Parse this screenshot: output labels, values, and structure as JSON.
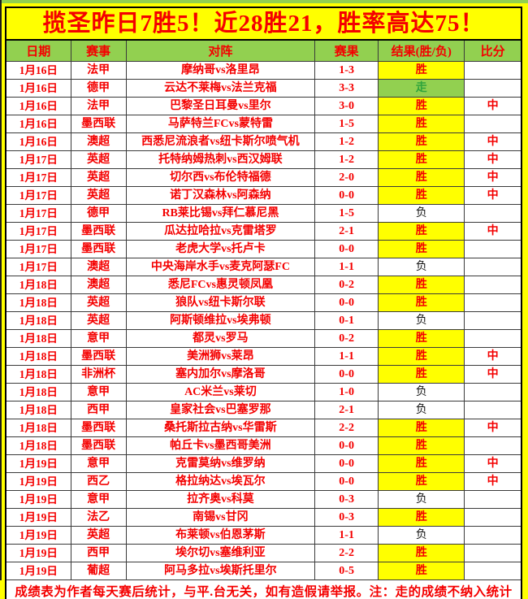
{
  "title": "揽圣昨日7胜5！近28胜21，胜率高达75！",
  "table": {
    "headers": [
      "日期",
      "赛事",
      "对阵",
      "赛果",
      "结果(胜/负)",
      "比分"
    ],
    "rows": [
      {
        "date": "1月16日",
        "league": "法甲",
        "match": "摩纳哥vs洛里昂",
        "score": "1-3",
        "result": "胜",
        "result_type": "win",
        "hit": ""
      },
      {
        "date": "1月16日",
        "league": "德甲",
        "match": "云达不莱梅vs法兰克福",
        "score": "3-3",
        "result": "走",
        "result_type": "draw",
        "hit": ""
      },
      {
        "date": "1月16日",
        "league": "法甲",
        "match": "巴黎圣日耳曼vs里尔",
        "score": "3-0",
        "result": "胜",
        "result_type": "win",
        "hit": "中"
      },
      {
        "date": "1月16日",
        "league": "墨西联",
        "match": "马萨特兰FCvs蒙特雷",
        "score": "1-5",
        "result": "胜",
        "result_type": "win",
        "hit": ""
      },
      {
        "date": "1月16日",
        "league": "澳超",
        "match": "西悉尼流浪者vs纽卡斯尔喷气机",
        "score": "1-2",
        "result": "胜",
        "result_type": "win",
        "hit": "中"
      },
      {
        "date": "1月17日",
        "league": "英超",
        "match": "托特纳姆热刺vs西汉姆联",
        "score": "1-2",
        "result": "胜",
        "result_type": "win",
        "hit": "中"
      },
      {
        "date": "1月17日",
        "league": "英超",
        "match": "切尔西vs布伦特福德",
        "score": "2-0",
        "result": "胜",
        "result_type": "win",
        "hit": "中"
      },
      {
        "date": "1月17日",
        "league": "英超",
        "match": "诺丁汉森林vs阿森纳",
        "score": "0-0",
        "result": "胜",
        "result_type": "win",
        "hit": "中"
      },
      {
        "date": "1月17日",
        "league": "德甲",
        "match": "RB莱比锡vs拜仁慕尼黑",
        "score": "1-5",
        "result": "负",
        "result_type": "loss",
        "hit": ""
      },
      {
        "date": "1月17日",
        "league": "墨西联",
        "match": "瓜达拉哈拉vs克雷塔罗",
        "score": "2-1",
        "result": "胜",
        "result_type": "win",
        "hit": "中"
      },
      {
        "date": "1月17日",
        "league": "墨西联",
        "match": "老虎大学vs托卢卡",
        "score": "0-0",
        "result": "胜",
        "result_type": "win",
        "hit": ""
      },
      {
        "date": "1月17日",
        "league": "澳超",
        "match": "中央海岸水手vs麦克阿瑟FC",
        "score": "1-1",
        "result": "负",
        "result_type": "loss",
        "hit": ""
      },
      {
        "date": "1月18日",
        "league": "澳超",
        "match": "悉尼FCvs惠灵顿凤凰",
        "score": "0-2",
        "result": "胜",
        "result_type": "win",
        "hit": ""
      },
      {
        "date": "1月18日",
        "league": "英超",
        "match": "狼队vs纽卡斯尔联",
        "score": "0-0",
        "result": "胜",
        "result_type": "win",
        "hit": ""
      },
      {
        "date": "1月18日",
        "league": "英超",
        "match": "阿斯顿维拉vs埃弗顿",
        "score": "0-1",
        "result": "负",
        "result_type": "loss",
        "hit": ""
      },
      {
        "date": "1月18日",
        "league": "意甲",
        "match": "都灵vs罗马",
        "score": "0-2",
        "result": "胜",
        "result_type": "win",
        "hit": ""
      },
      {
        "date": "1月18日",
        "league": "墨西联",
        "match": "美洲狮vs莱昂",
        "score": "1-1",
        "result": "胜",
        "result_type": "win",
        "hit": "中"
      },
      {
        "date": "1月18日",
        "league": "非洲杯",
        "match": "塞内加尔vs摩洛哥",
        "score": "0-0",
        "result": "胜",
        "result_type": "win",
        "hit": "中"
      },
      {
        "date": "1月18日",
        "league": "意甲",
        "match": "AC米兰vs莱切",
        "score": "1-0",
        "result": "负",
        "result_type": "loss",
        "hit": ""
      },
      {
        "date": "1月18日",
        "league": "西甲",
        "match": "皇家社会vs巴塞罗那",
        "score": "2-1",
        "result": "负",
        "result_type": "loss",
        "hit": ""
      },
      {
        "date": "1月18日",
        "league": "墨西联",
        "match": "桑托斯拉古纳vs华雷斯",
        "score": "2-2",
        "result": "胜",
        "result_type": "win",
        "hit": "中"
      },
      {
        "date": "1月18日",
        "league": "墨西联",
        "match": "帕丘卡vs墨西哥美洲",
        "score": "0-0",
        "result": "胜",
        "result_type": "win",
        "hit": ""
      },
      {
        "date": "1月19日",
        "league": "意甲",
        "match": "克雷莫纳vs维罗纳",
        "score": "0-0",
        "result": "胜",
        "result_type": "win",
        "hit": "中"
      },
      {
        "date": "1月19日",
        "league": "西乙",
        "match": "格拉纳达vs埃瓦尔",
        "score": "0-0",
        "result": "胜",
        "result_type": "win",
        "hit": "中"
      },
      {
        "date": "1月19日",
        "league": "意甲",
        "match": "拉齐奥vs科莫",
        "score": "0-3",
        "result": "负",
        "result_type": "loss",
        "hit": ""
      },
      {
        "date": "1月19日",
        "league": "法乙",
        "match": "南锡vs甘冈",
        "score": "0-3",
        "result": "胜",
        "result_type": "win",
        "hit": ""
      },
      {
        "date": "1月19日",
        "league": "英超",
        "match": "布莱顿vs伯恩茅斯",
        "score": "1-1",
        "result": "负",
        "result_type": "loss",
        "hit": ""
      },
      {
        "date": "1月19日",
        "league": "西甲",
        "match": "埃尔切vs塞维利亚",
        "score": "2-2",
        "result": "胜",
        "result_type": "win",
        "hit": ""
      },
      {
        "date": "1月19日",
        "league": "葡超",
        "match": "阿马多拉vs埃斯托里尔",
        "score": "0-5",
        "result": "胜",
        "result_type": "win",
        "hit": ""
      }
    ]
  },
  "footer_note": "成绩表为作者每天赛后统计，与平.台无关，如有造假请举报。注：走的成绩不纳入统计",
  "colors": {
    "page_bg": "#FFFF00",
    "header_bg": "#92D050",
    "win_bg": "#FFFF00",
    "draw_bg": "#92D050",
    "red": "#F40000",
    "draw_text": "#2FA43C",
    "loss_text": "#141414"
  }
}
